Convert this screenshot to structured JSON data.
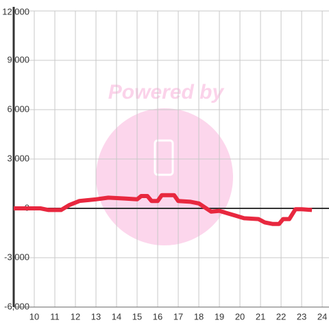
{
  "chart_data": {
    "type": "line",
    "watermark": "Powered by",
    "x": [
      9.0,
      10.3,
      10.7,
      11.3,
      11.7,
      12.2,
      13.0,
      13.6,
      14.4,
      15.0,
      15.2,
      15.5,
      15.7,
      16.0,
      16.2,
      16.8,
      17.0,
      17.6,
      18.0,
      18.3,
      18.6,
      19.0,
      19.4,
      19.8,
      20.2,
      20.9,
      21.2,
      21.6,
      21.9,
      22.1,
      22.4,
      22.7,
      23.0,
      23.5
    ],
    "series": [
      {
        "color": "#e8283f",
        "values": [
          0,
          0,
          -100,
          -100,
          200,
          450,
          550,
          650,
          600,
          550,
          750,
          750,
          450,
          450,
          800,
          800,
          450,
          400,
          300,
          50,
          -200,
          -150,
          -300,
          -450,
          -600,
          -650,
          -850,
          -950,
          -950,
          -650,
          -650,
          -50,
          -50,
          -100
        ]
      }
    ],
    "xlim": [
      9,
      24.33
    ],
    "xticks": [
      10,
      11,
      12,
      13,
      14,
      15,
      16,
      17,
      18,
      19,
      20,
      21,
      22,
      23,
      24
    ],
    "ylim": [
      -6000,
      12000
    ],
    "yticks": [
      {
        "value": -6000,
        "label": "-6,000"
      },
      {
        "value": -3000,
        "label": "-3,000"
      },
      0,
      {
        "value": 3000,
        "label": "3,000"
      },
      {
        "value": 6000,
        "label": "6,000"
      },
      {
        "value": 9000,
        "label": "9,000"
      },
      {
        "value": 12000,
        "label": "12,000"
      }
    ],
    "grid": true
  }
}
